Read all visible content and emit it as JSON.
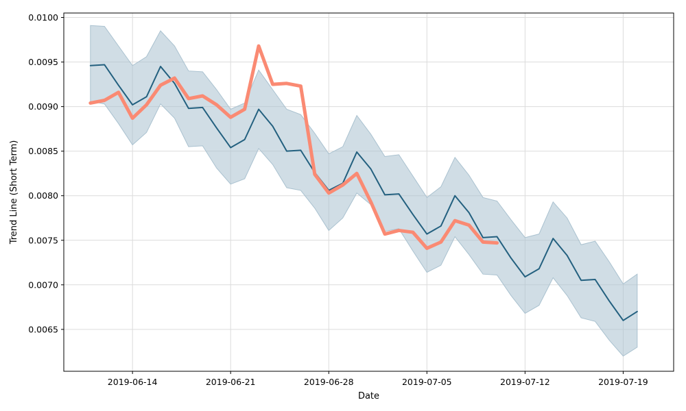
{
  "chart_data": {
    "type": "line",
    "title": "",
    "xlabel": "Date",
    "ylabel": "Trend Line (Short Term)",
    "grid": true,
    "x_start": "2019-06-11",
    "x_tick_labels": [
      "2019-06-14",
      "2019-06-21",
      "2019-06-28",
      "2019-07-05",
      "2019-07-12",
      "2019-07-19"
    ],
    "x_tick_day_index": [
      3,
      10,
      17,
      24,
      31,
      38
    ],
    "y_tick_labels": [
      "0.0065",
      "0.0070",
      "0.0075",
      "0.0080",
      "0.0085",
      "0.0090",
      "0.0095",
      "0.0100"
    ],
    "y_ticks": [
      0.0065,
      0.007,
      0.0075,
      0.008,
      0.0085,
      0.009,
      0.0095,
      0.01
    ],
    "xlim_day_index": [
      -1.9,
      41.6
    ],
    "ylim": [
      0.00603,
      0.01005
    ],
    "series": [
      {
        "name": "trend",
        "role": "line",
        "color": "#23607f",
        "day_index": [
          0,
          1,
          2,
          3,
          4,
          5,
          6,
          7,
          8,
          9,
          10,
          11,
          12,
          13,
          14,
          15,
          16,
          17,
          18,
          19,
          20,
          21,
          22,
          23,
          24,
          25,
          26,
          27,
          28,
          29,
          30,
          31,
          32,
          33,
          34,
          35,
          36,
          37,
          38,
          39
        ],
        "values": [
          0.00946,
          0.00947,
          0.00924,
          0.00902,
          0.00911,
          0.00945,
          0.00926,
          0.00898,
          0.00899,
          0.00876,
          0.00854,
          0.00863,
          0.00897,
          0.00878,
          0.0085,
          0.00851,
          0.00826,
          0.00806,
          0.00814,
          0.00849,
          0.0083,
          0.00801,
          0.00802,
          0.00779,
          0.00757,
          0.00766,
          0.008,
          0.00781,
          0.00753,
          0.00754,
          0.0073,
          0.00709,
          0.00718,
          0.00752,
          0.00733,
          0.00705,
          0.00706,
          0.00682,
          0.0066,
          0.0067
        ]
      },
      {
        "name": "band_upper",
        "role": "band-upper",
        "color": "#a9c1cf",
        "day_index": [
          0,
          1,
          2,
          3,
          4,
          5,
          6,
          7,
          8,
          9,
          10,
          11,
          12,
          13,
          14,
          15,
          16,
          17,
          18,
          19,
          20,
          21,
          22,
          23,
          24,
          25,
          26,
          27,
          28,
          29,
          30,
          31,
          32,
          33,
          34,
          35,
          36,
          37,
          38,
          39
        ],
        "values": [
          0.00991,
          0.0099,
          0.00968,
          0.00946,
          0.00956,
          0.00985,
          0.00968,
          0.0094,
          0.00939,
          0.00919,
          0.00897,
          0.00904,
          0.00941,
          0.00919,
          0.00897,
          0.00891,
          0.0087,
          0.00847,
          0.00855,
          0.0089,
          0.00869,
          0.00844,
          0.00846,
          0.00822,
          0.00798,
          0.0081,
          0.00843,
          0.00823,
          0.00798,
          0.00794,
          0.00773,
          0.00753,
          0.00757,
          0.00793,
          0.00775,
          0.00745,
          0.00749,
          0.00726,
          0.00701,
          0.00712
        ]
      },
      {
        "name": "band_lower",
        "role": "band-lower",
        "color": "#a9c1cf",
        "day_index": [
          0,
          1,
          2,
          3,
          4,
          5,
          6,
          7,
          8,
          9,
          10,
          11,
          12,
          13,
          14,
          15,
          16,
          17,
          18,
          19,
          20,
          21,
          22,
          23,
          24,
          25,
          26,
          27,
          28,
          29,
          30,
          31,
          32,
          33,
          34,
          35,
          36,
          37,
          38,
          39
        ],
        "values": [
          0.00906,
          0.00903,
          0.00881,
          0.00857,
          0.00871,
          0.00903,
          0.00887,
          0.00855,
          0.00856,
          0.00831,
          0.00813,
          0.00819,
          0.00853,
          0.00835,
          0.00809,
          0.00806,
          0.00786,
          0.00761,
          0.00775,
          0.00803,
          0.0079,
          0.0076,
          0.00763,
          0.00738,
          0.00714,
          0.00722,
          0.00754,
          0.00734,
          0.00712,
          0.00711,
          0.00688,
          0.00668,
          0.00677,
          0.00708,
          0.00688,
          0.00663,
          0.00659,
          0.00638,
          0.0062,
          0.0063
        ]
      },
      {
        "name": "observed",
        "role": "line-thick",
        "color": "#fa8a73",
        "day_index": [
          0,
          1,
          2,
          3,
          4,
          5,
          6,
          7,
          8,
          9,
          10,
          11,
          12,
          13,
          14,
          15,
          16,
          17,
          18,
          19,
          20,
          21,
          22,
          23,
          24,
          25,
          26,
          27,
          28,
          29
        ],
        "values": [
          0.00904,
          0.00907,
          0.00916,
          0.00887,
          0.00902,
          0.00924,
          0.00932,
          0.00909,
          0.00912,
          0.00902,
          0.00888,
          0.00897,
          0.00968,
          0.00925,
          0.00926,
          0.00923,
          0.00824,
          0.00803,
          0.00812,
          0.00825,
          0.00793,
          0.00757,
          0.00761,
          0.00759,
          0.00741,
          0.00748,
          0.00772,
          0.00767,
          0.00748,
          0.00747
        ]
      }
    ]
  }
}
